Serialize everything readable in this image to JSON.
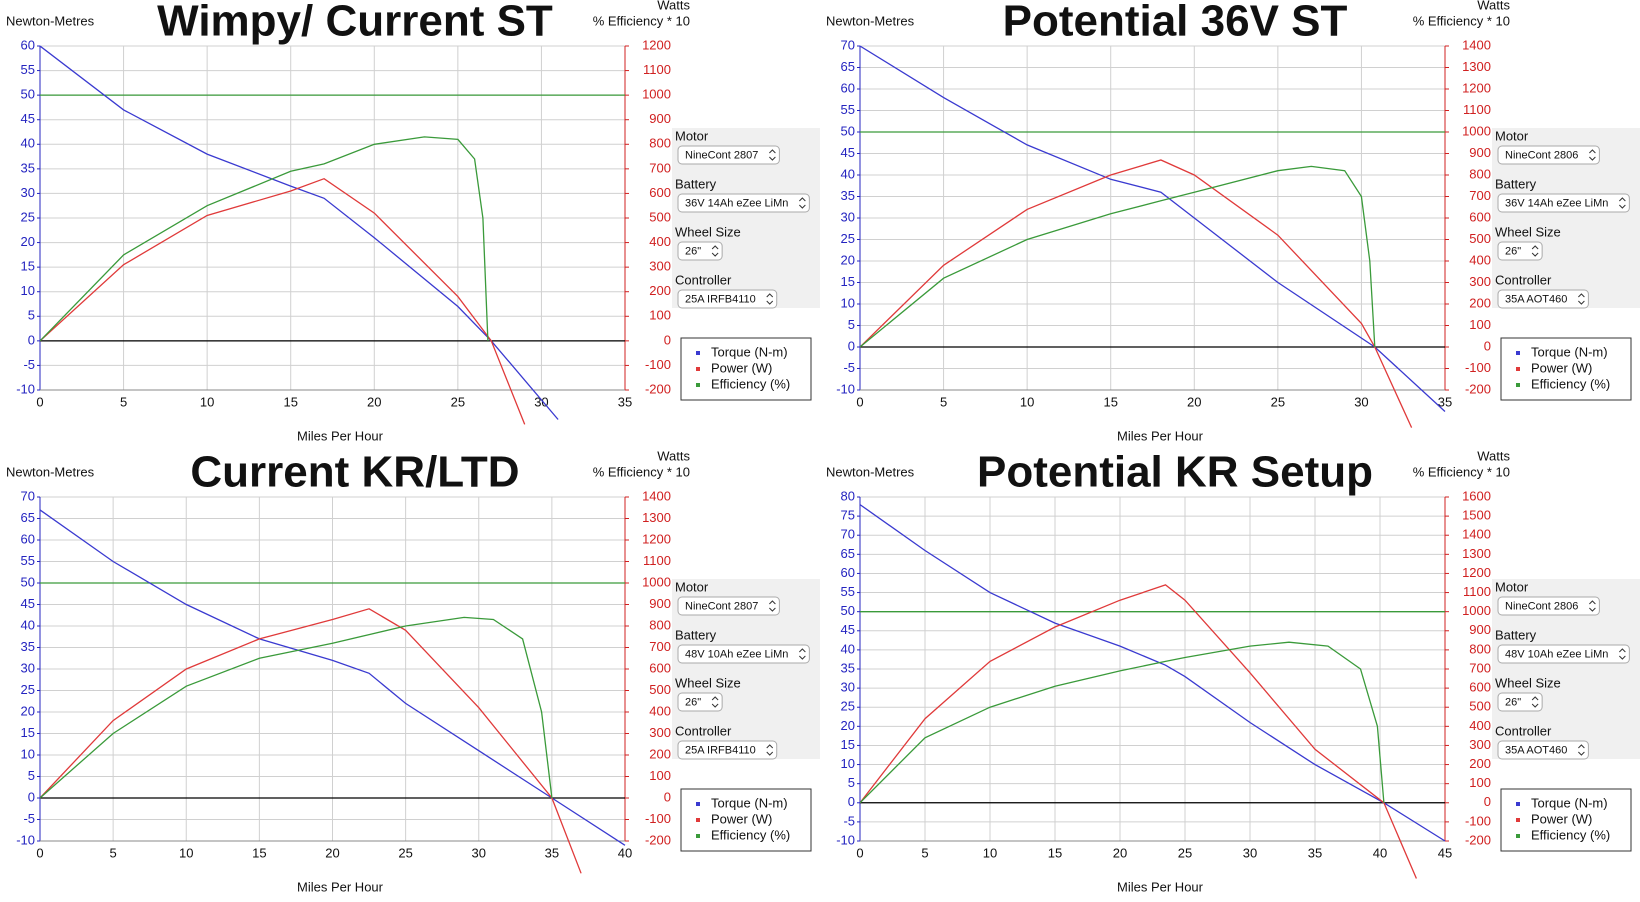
{
  "chart_data": [
    {
      "type": "line",
      "title": "Wimpy/ Current ST",
      "y_label": "Newton-Metres",
      "y2_label": "Watts",
      "y2_sublabel": "% Efficiency * 10",
      "x_label": "Miles Per Hour",
      "xlim": [
        0,
        35
      ],
      "xticks": [
        0,
        5,
        10,
        15,
        20,
        25,
        30,
        35
      ],
      "ylim": [
        -10,
        60
      ],
      "yticks": [
        -10,
        -5,
        0,
        5,
        10,
        15,
        20,
        25,
        30,
        35,
        40,
        45,
        50,
        55,
        60
      ],
      "y2lim": [
        -200,
        1200
      ],
      "y2ticks": [
        -200,
        -100,
        0,
        100,
        200,
        300,
        400,
        500,
        600,
        700,
        800,
        900,
        1000,
        1100,
        1200
      ],
      "grid": true,
      "legend": "right",
      "reference_line": {
        "value": 1000,
        "axis": "y2",
        "color": "#3a9a3a"
      },
      "series": [
        {
          "name": "Torque (N-m)",
          "color": "#3a3ad0",
          "axis": "y",
          "x": [
            0,
            5,
            10,
            15,
            17,
            20,
            25,
            27,
            31
          ],
          "values": [
            60,
            47,
            38,
            31.5,
            29,
            21,
            7,
            0,
            -16
          ]
        },
        {
          "name": "Power (W)",
          "color": "#e03a3a",
          "axis": "y2",
          "x": [
            0,
            5,
            10,
            15,
            17,
            20,
            25,
            27,
            29
          ],
          "values": [
            0,
            310,
            510,
            610,
            660,
            520,
            180,
            0,
            -340
          ]
        },
        {
          "name": "Efficiency (%)",
          "color": "#3a9a3a",
          "axis": "y2",
          "x": [
            0,
            5,
            10,
            15,
            17,
            20,
            23,
            25,
            26,
            26.5,
            26.8
          ],
          "values": [
            0,
            350,
            550,
            690,
            720,
            800,
            830,
            820,
            740,
            500,
            0
          ]
        }
      ],
      "controls": [
        {
          "label": "Motor",
          "value": "NineCont 2807"
        },
        {
          "label": "Battery",
          "value": "36V 14Ah eZee LiMn"
        },
        {
          "label": "Wheel Size",
          "value": "26\""
        },
        {
          "label": "Controller",
          "value": "25A IRFB4110"
        }
      ]
    },
    {
      "type": "line",
      "title": "Potential 36V ST",
      "y_label": "Newton-Metres",
      "y2_label": "Watts",
      "y2_sublabel": "% Efficiency * 10",
      "x_label": "Miles Per Hour",
      "xlim": [
        0,
        35
      ],
      "xticks": [
        0,
        5,
        10,
        15,
        20,
        25,
        30,
        35
      ],
      "ylim": [
        -10,
        70
      ],
      "yticks": [
        -10,
        -5,
        0,
        5,
        10,
        15,
        20,
        25,
        30,
        35,
        40,
        45,
        50,
        55,
        60,
        65,
        70
      ],
      "y2lim": [
        -200,
        1400
      ],
      "y2ticks": [
        -200,
        -100,
        0,
        100,
        200,
        300,
        400,
        500,
        600,
        700,
        800,
        900,
        1000,
        1100,
        1200,
        1300,
        1400
      ],
      "grid": true,
      "legend": "right",
      "reference_line": {
        "value": 1000,
        "axis": "y2",
        "color": "#3a9a3a"
      },
      "series": [
        {
          "name": "Torque (N-m)",
          "color": "#3a3ad0",
          "axis": "y",
          "x": [
            0,
            5,
            10,
            15,
            18,
            20,
            25,
            30.8,
            35
          ],
          "values": [
            70,
            58,
            47,
            39,
            36,
            30,
            15,
            0,
            -15
          ]
        },
        {
          "name": "Power (W)",
          "color": "#e03a3a",
          "axis": "y2",
          "x": [
            0,
            5,
            10,
            15,
            18,
            20,
            25,
            30,
            30.8,
            33
          ],
          "values": [
            0,
            380,
            640,
            800,
            870,
            800,
            520,
            110,
            0,
            -375
          ]
        },
        {
          "name": "Efficiency (%)",
          "color": "#3a9a3a",
          "axis": "y2",
          "x": [
            0,
            5,
            10,
            15,
            18,
            20,
            25,
            27,
            29,
            30,
            30.5,
            30.8
          ],
          "values": [
            0,
            320,
            500,
            620,
            680,
            720,
            820,
            840,
            820,
            700,
            400,
            0
          ]
        }
      ],
      "controls": [
        {
          "label": "Motor",
          "value": "NineCont 2806"
        },
        {
          "label": "Battery",
          "value": "36V 14Ah eZee LiMn"
        },
        {
          "label": "Wheel Size",
          "value": "26\""
        },
        {
          "label": "Controller",
          "value": "35A AOT460"
        }
      ]
    },
    {
      "type": "line",
      "title": "Current KR/LTD",
      "y_label": "Newton-Metres",
      "y2_label": "Watts",
      "y2_sublabel": "% Efficiency * 10",
      "x_label": "Miles Per Hour",
      "xlim": [
        0,
        40
      ],
      "xticks": [
        0,
        5,
        10,
        15,
        20,
        25,
        30,
        35,
        40
      ],
      "ylim": [
        -10,
        70
      ],
      "yticks": [
        -10,
        -5,
        0,
        5,
        10,
        15,
        20,
        25,
        30,
        35,
        40,
        45,
        50,
        55,
        60,
        65,
        70
      ],
      "y2lim": [
        -200,
        1400
      ],
      "y2ticks": [
        -200,
        -100,
        0,
        100,
        200,
        300,
        400,
        500,
        600,
        700,
        800,
        900,
        1000,
        1100,
        1200,
        1300,
        1400
      ],
      "grid": true,
      "legend": "right",
      "reference_line": {
        "value": 1000,
        "axis": "y2",
        "color": "#3a9a3a"
      },
      "series": [
        {
          "name": "Torque (N-m)",
          "color": "#3a3ad0",
          "axis": "y",
          "x": [
            0,
            5,
            10,
            15,
            20,
            22.5,
            25,
            30,
            35,
            40
          ],
          "values": [
            67,
            55,
            45,
            37,
            32,
            29,
            22,
            11,
            0,
            -11
          ]
        },
        {
          "name": "Power (W)",
          "color": "#e03a3a",
          "axis": "y2",
          "x": [
            0,
            5,
            10,
            15,
            20,
            22.5,
            25,
            30,
            35,
            37
          ],
          "values": [
            0,
            360,
            600,
            740,
            830,
            880,
            780,
            420,
            0,
            -350
          ]
        },
        {
          "name": "Efficiency (%)",
          "color": "#3a9a3a",
          "axis": "y2",
          "x": [
            0,
            5,
            10,
            15,
            20,
            22.5,
            25,
            29,
            31,
            33,
            34.3,
            35
          ],
          "values": [
            0,
            300,
            520,
            650,
            720,
            760,
            800,
            840,
            830,
            740,
            400,
            0
          ]
        }
      ],
      "controls": [
        {
          "label": "Motor",
          "value": "NineCont 2807"
        },
        {
          "label": "Battery",
          "value": "48V 10Ah eZee LiMn"
        },
        {
          "label": "Wheel Size",
          "value": "26\""
        },
        {
          "label": "Controller",
          "value": "25A IRFB4110"
        }
      ]
    },
    {
      "type": "line",
      "title": "Potential KR Setup",
      "y_label": "Newton-Metres",
      "y2_label": "Watts",
      "y2_sublabel": "% Efficiency * 10",
      "x_label": "Miles Per Hour",
      "xlim": [
        0,
        45
      ],
      "xticks": [
        0,
        5,
        10,
        15,
        20,
        25,
        30,
        35,
        40,
        45
      ],
      "ylim": [
        -10,
        80
      ],
      "yticks": [
        -10,
        -5,
        0,
        5,
        10,
        15,
        20,
        25,
        30,
        35,
        40,
        45,
        50,
        55,
        60,
        65,
        70,
        75,
        80
      ],
      "y2lim": [
        -200,
        1600
      ],
      "y2ticks": [
        -200,
        -100,
        0,
        100,
        200,
        300,
        400,
        500,
        600,
        700,
        800,
        900,
        1000,
        1100,
        1200,
        1300,
        1400,
        1500,
        1600
      ],
      "grid": true,
      "legend": "right",
      "reference_line": {
        "value": 1000,
        "axis": "y2",
        "color": "#3a9a3a"
      },
      "series": [
        {
          "name": "Torque (N-m)",
          "color": "#3a3ad0",
          "axis": "y",
          "x": [
            0,
            5,
            10,
            15,
            20,
            23.5,
            25,
            30,
            35,
            40.3,
            45
          ],
          "values": [
            78,
            66,
            55,
            47,
            41,
            36,
            33,
            21,
            10,
            0,
            -10
          ]
        },
        {
          "name": "Power (W)",
          "color": "#e03a3a",
          "axis": "y2",
          "x": [
            0,
            5,
            10,
            15,
            20,
            23.5,
            25,
            30,
            35,
            40.3,
            42.8
          ],
          "values": [
            0,
            440,
            740,
            920,
            1060,
            1140,
            1060,
            680,
            280,
            0,
            -396
          ]
        },
        {
          "name": "Efficiency (%)",
          "color": "#3a9a3a",
          "axis": "y2",
          "x": [
            0,
            5,
            10,
            15,
            20,
            23.5,
            25,
            30,
            33,
            36,
            38.5,
            39.8,
            40.3
          ],
          "values": [
            0,
            340,
            500,
            610,
            690,
            740,
            760,
            820,
            840,
            820,
            700,
            400,
            0
          ]
        }
      ],
      "controls": [
        {
          "label": "Motor",
          "value": "NineCont 2806"
        },
        {
          "label": "Battery",
          "value": "48V 10Ah eZee LiMn"
        },
        {
          "label": "Wheel Size",
          "value": "26\""
        },
        {
          "label": "Controller",
          "value": "35A AOT460"
        }
      ]
    }
  ]
}
